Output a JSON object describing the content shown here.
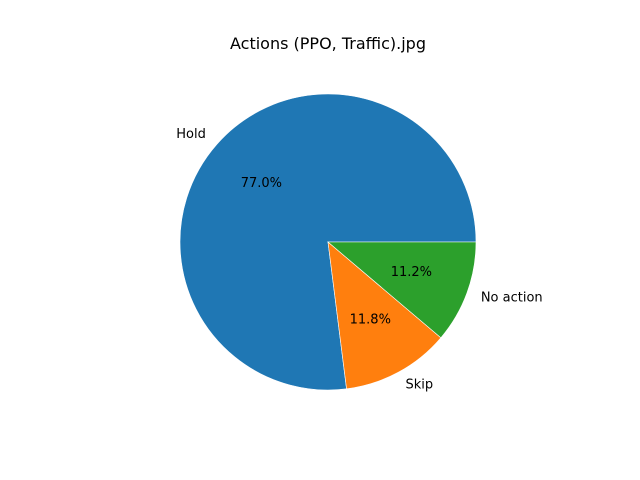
{
  "chart_data": {
    "type": "pie",
    "title": "Actions (PPO, Traffic).jpg",
    "start_angle_deg": 0,
    "direction": "counterclockwise",
    "slices": [
      {
        "label": "Hold",
        "value": 77.0,
        "pct_label": "77.0%",
        "color": "#1f77b4"
      },
      {
        "label": "Skip",
        "value": 11.8,
        "pct_label": "11.8%",
        "color": "#ff7f0e"
      },
      {
        "label": "No action",
        "value": 11.2,
        "pct_label": "11.2%",
        "color": "#2ca02c"
      }
    ]
  }
}
